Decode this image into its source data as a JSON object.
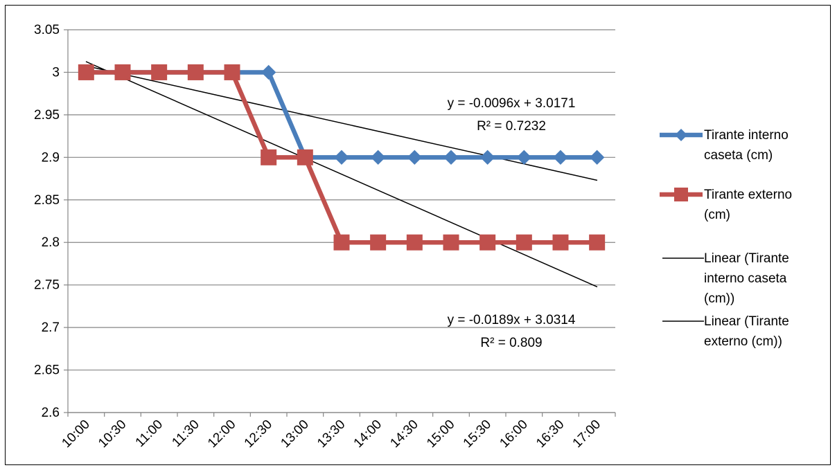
{
  "chart_data": {
    "type": "line",
    "categories": [
      "10:00",
      "10:30",
      "11:00",
      "11:30",
      "12:00",
      "12:30",
      "13:00",
      "13:30",
      "14:00",
      "14:30",
      "15:00",
      "15:30",
      "16:00",
      "16:30",
      "17:00"
    ],
    "ylim": [
      2.6,
      3.05
    ],
    "yticks": [
      "2.6",
      "2.65",
      "2.7",
      "2.75",
      "2.8",
      "2.85",
      "2.9",
      "2.95",
      "3",
      "3.05"
    ],
    "grid": true,
    "legend_position": "right",
    "series": [
      {
        "name": "Tirante interno caseta (cm)",
        "color": "#4A7EBB",
        "marker": "diamond",
        "values": [
          3.0,
          3.0,
          3.0,
          3.0,
          3.0,
          3.0,
          2.9,
          2.9,
          2.9,
          2.9,
          2.9,
          2.9,
          2.9,
          2.9,
          2.9
        ]
      },
      {
        "name": "Tirante externo (cm)",
        "color": "#C0504D",
        "marker": "square",
        "values": [
          3.0,
          3.0,
          3.0,
          3.0,
          3.0,
          2.9,
          2.9,
          2.8,
          2.8,
          2.8,
          2.8,
          2.8,
          2.8,
          2.8,
          2.8
        ]
      }
    ],
    "trendlines": [
      {
        "name": "Linear (Tirante interno caseta (cm))",
        "slope": -0.0096,
        "intercept": 3.0171,
        "equation": "y = -0.0096x + 3.0171",
        "r2": "R² = 0.7232",
        "color": "#000000"
      },
      {
        "name": "Linear (Tirante externo (cm))",
        "slope": -0.0189,
        "intercept": 3.0314,
        "equation": "y = -0.0189x + 3.0314",
        "r2": "R² = 0.809",
        "color": "#000000"
      }
    ],
    "legend": [
      {
        "lines": [
          "Tirante interno",
          "caseta (cm)"
        ],
        "series": 0
      },
      {
        "lines": [
          "Tirante externo",
          "(cm)"
        ],
        "series": 1
      },
      {
        "lines": [
          "Linear (Tirante",
          "interno caseta",
          "(cm))"
        ],
        "trend": 0
      },
      {
        "lines": [
          "Linear (Tirante",
          "externo (cm))"
        ],
        "trend": 1
      }
    ]
  }
}
